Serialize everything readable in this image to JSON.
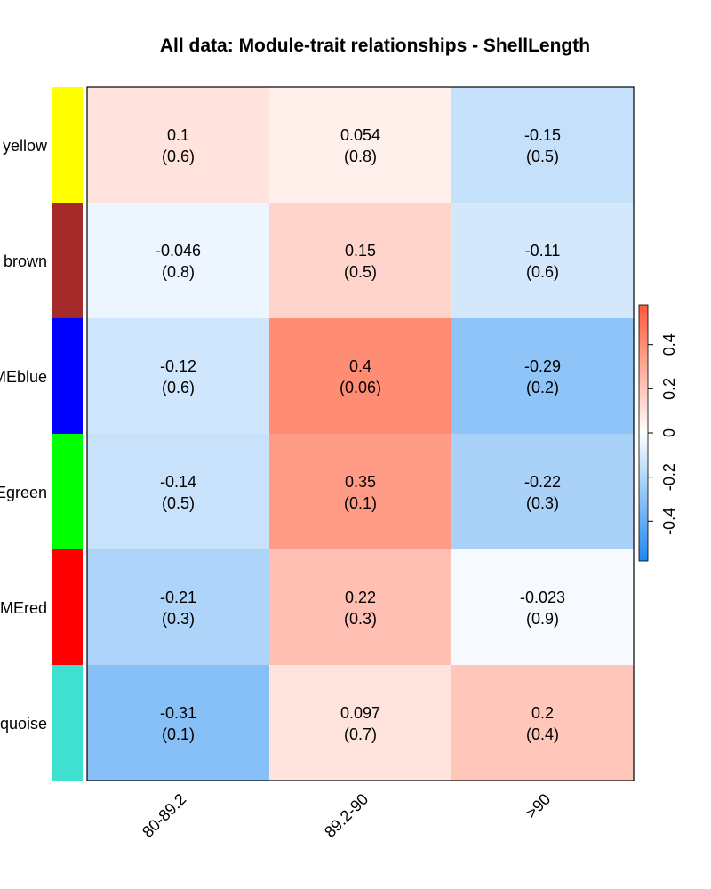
{
  "chart_data": {
    "type": "heatmap",
    "title": "All data: Module-trait relationships - ShellLength",
    "columns": [
      "80-89.2",
      "89.2-90",
      ">90"
    ],
    "rows": [
      {
        "label": "yellow",
        "color": "#FFFF00"
      },
      {
        "label": "brown",
        "color": "#A52A2A"
      },
      {
        "label": "MEblue",
        "color": "#0000FF"
      },
      {
        "label": "Egreen",
        "color": "#00FF00"
      },
      {
        "label": "MEred",
        "color": "#FF0000"
      },
      {
        "label": "quoise",
        "color": "#40E0D0"
      }
    ],
    "values": [
      [
        0.1,
        0.054,
        -0.15
      ],
      [
        -0.046,
        0.15,
        -0.11
      ],
      [
        -0.12,
        0.4,
        -0.29
      ],
      [
        -0.14,
        0.35,
        -0.22
      ],
      [
        -0.21,
        0.22,
        -0.023
      ],
      [
        -0.31,
        0.097,
        0.2
      ]
    ],
    "value_labels": [
      [
        "0.1",
        "0.054",
        "-0.15"
      ],
      [
        "-0.046",
        "0.15",
        "-0.11"
      ],
      [
        "-0.12",
        "0.4",
        "-0.29"
      ],
      [
        "-0.14",
        "0.35",
        "-0.22"
      ],
      [
        "-0.21",
        "0.22",
        "-0.023"
      ],
      [
        "-0.31",
        "0.097",
        "0.2"
      ]
    ],
    "pvalue_labels": [
      [
        "(0.6)",
        "(0.8)",
        "(0.5)"
      ],
      [
        "(0.8)",
        "(0.5)",
        "(0.6)"
      ],
      [
        "(0.6)",
        "(0.06)",
        "(0.2)"
      ],
      [
        "(0.5)",
        "(0.1)",
        "(0.3)"
      ],
      [
        "(0.3)",
        "(0.3)",
        "(0.9)"
      ],
      [
        "(0.1)",
        "(0.7)",
        "(0.4)"
      ]
    ],
    "color_scale": {
      "range": [
        -0.58,
        0.58
      ],
      "ticks": [
        -0.4,
        -0.2,
        0,
        0.2,
        0.4
      ],
      "tick_labels": [
        "-0.4",
        "-0.2",
        "0",
        "0.2",
        "0.4"
      ],
      "low_color": "#1E88F0",
      "mid_color": "#FFFFFF",
      "high_color": "#FF5A36"
    }
  }
}
